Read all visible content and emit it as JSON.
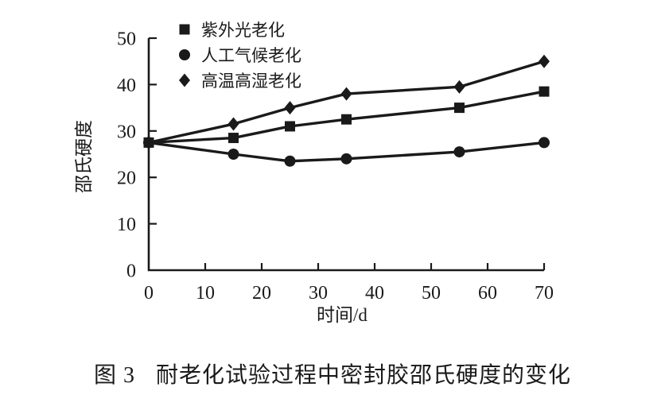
{
  "colors": {
    "ink": "#1a1a1a",
    "background": "#ffffff"
  },
  "chart_data": {
    "type": "line",
    "x": [
      0,
      15,
      25,
      35,
      55,
      70
    ],
    "series": [
      {
        "name": "紫外光老化",
        "marker": "square",
        "values": [
          27.5,
          28.5,
          31.0,
          32.5,
          35.0,
          38.5
        ]
      },
      {
        "name": "人工气候老化",
        "marker": "circle",
        "values": [
          27.5,
          25.0,
          23.5,
          24.0,
          25.5,
          27.5
        ]
      },
      {
        "name": "高温高湿老化",
        "marker": "diamond",
        "values": [
          27.5,
          31.5,
          35.0,
          38.0,
          39.5,
          45.0
        ]
      }
    ],
    "xlabel": "时间/d",
    "ylabel": "邵氏硬度",
    "xlim": [
      0,
      70
    ],
    "ylim": [
      0,
      50
    ],
    "x_ticks": [
      0,
      10,
      20,
      30,
      40,
      50,
      60,
      70
    ],
    "y_ticks": [
      0,
      10,
      20,
      30,
      40,
      50
    ],
    "grid": false,
    "legend_position": "top-left",
    "line_color": "#1a1a1a"
  },
  "caption": {
    "figure_label": "图 3",
    "text": "耐老化试验过程中密封胶邵氏硬度的变化"
  }
}
